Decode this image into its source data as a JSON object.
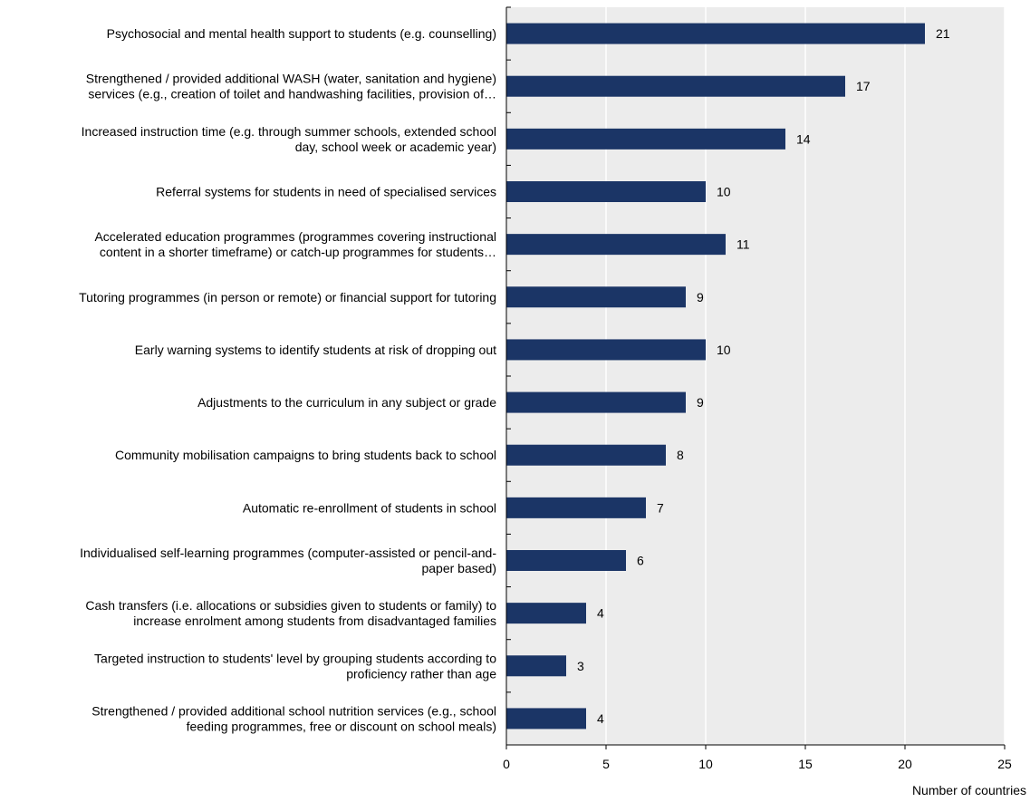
{
  "chart_data": {
    "type": "bar",
    "orientation": "horizontal",
    "categories": [
      [
        "Psychosocial and mental health support to students (e.g. counselling)"
      ],
      [
        "Strengthened / provided additional WASH (water, sanitation and hygiene)",
        "services (e.g., creation of toilet and handwashing facilities, provision of…"
      ],
      [
        "Increased instruction time (e.g. through summer schools, extended school",
        "day, school week or academic year)"
      ],
      [
        "Referral systems for students in need of specialised services"
      ],
      [
        "Accelerated education programmes (programmes covering instructional",
        "content in a shorter timeframe) or catch-up programmes for students…"
      ],
      [
        "Tutoring programmes (in person or remote) or financial support for tutoring"
      ],
      [
        "Early warning systems to identify students at risk of dropping out"
      ],
      [
        "Adjustments to the curriculum in any subject or grade"
      ],
      [
        "Community mobilisation campaigns to bring students back to school"
      ],
      [
        "Automatic re-enrollment of students in school"
      ],
      [
        "Individualised self-learning programmes (computer-assisted or pencil-and-",
        "paper based)"
      ],
      [
        "Cash transfers (i.e. allocations or subsidies given to students or family) to",
        "increase enrolment among students from disadvantaged families"
      ],
      [
        "Targeted instruction to students' level by grouping students according to",
        "proficiency rather than age"
      ],
      [
        "Strengthened / provided additional school nutrition services (e.g., school",
        "feeding programmes, free or discount on school meals)"
      ]
    ],
    "values": [
      21,
      17,
      14,
      10,
      11,
      9,
      10,
      9,
      8,
      7,
      6,
      4,
      3,
      4
    ],
    "xlim": [
      0,
      25
    ],
    "xticks": [
      0,
      5,
      10,
      15,
      20,
      25
    ],
    "xlabel": "Number of countries",
    "ylabel": "",
    "title": "",
    "grid": "vertical",
    "colors": {
      "bar": "#1b3566",
      "plot_background": "#ececec",
      "gridline": "#ffffff",
      "axis": "#000000"
    }
  }
}
